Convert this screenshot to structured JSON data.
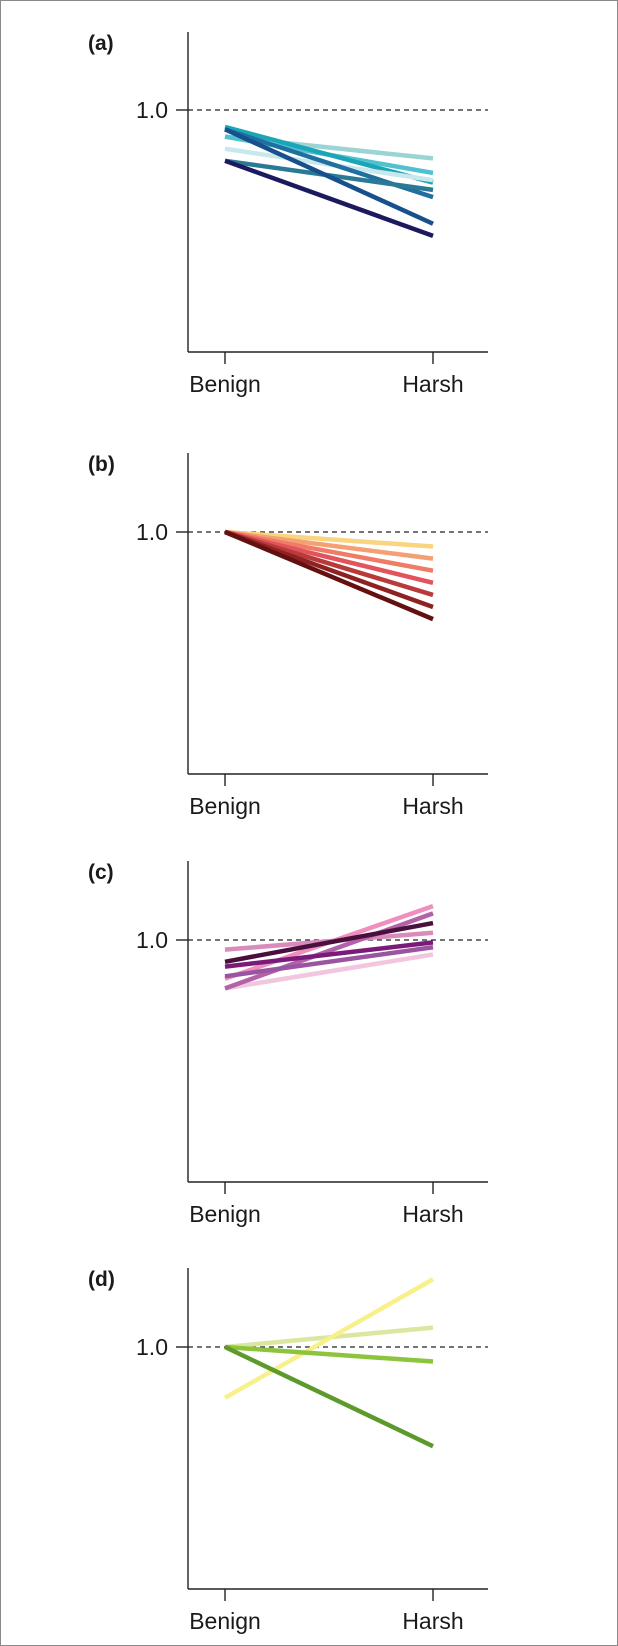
{
  "chart_data": [
    {
      "type": "line",
      "panel_label": "(a)",
      "categories": [
        "Benign",
        "Harsh"
      ],
      "yref_label": "1.0",
      "ylim": [
        0.0,
        1.2
      ],
      "reference_line": 1.0,
      "series": [
        {
          "values": [
            0.89,
            0.8
          ],
          "color": "#9ad4d4"
        },
        {
          "values": [
            0.89,
            0.74
          ],
          "color": "#4fc1cf"
        },
        {
          "values": [
            0.93,
            0.7
          ],
          "color": "#1aa6b7"
        },
        {
          "values": [
            0.84,
            0.71
          ],
          "color": "#c8e8ec"
        },
        {
          "values": [
            0.92,
            0.64
          ],
          "color": "#1f6fa0"
        },
        {
          "values": [
            0.79,
            0.67
          ],
          "color": "#2a7a95"
        },
        {
          "values": [
            0.92,
            0.53
          ],
          "color": "#17508c"
        },
        {
          "values": [
            0.79,
            0.48
          ],
          "color": "#1c1a5e"
        }
      ]
    },
    {
      "type": "line",
      "panel_label": "(b)",
      "categories": [
        "Benign",
        "Harsh"
      ],
      "yref_label": "1.0",
      "ylim": [
        0.0,
        1.2
      ],
      "reference_line": 1.0,
      "series": [
        {
          "values": [
            1.0,
            0.94
          ],
          "color": "#f8d57e"
        },
        {
          "values": [
            1.0,
            0.89
          ],
          "color": "#f4a072"
        },
        {
          "values": [
            1.0,
            0.84
          ],
          "color": "#ee7c66"
        },
        {
          "values": [
            1.0,
            0.79
          ],
          "color": "#e2535c"
        },
        {
          "values": [
            1.0,
            0.74
          ],
          "color": "#b93a3a"
        },
        {
          "values": [
            1.0,
            0.69
          ],
          "color": "#8e2222"
        },
        {
          "values": [
            1.0,
            0.64
          ],
          "color": "#641010"
        }
      ]
    },
    {
      "type": "line",
      "panel_label": "(c)",
      "categories": [
        "Benign",
        "Harsh"
      ],
      "yref_label": "1.0",
      "ylim": [
        0.0,
        1.2
      ],
      "reference_line": 1.0,
      "series": [
        {
          "values": [
            0.96,
            1.03
          ],
          "color": "#d98cbc"
        },
        {
          "values": [
            0.8,
            0.94
          ],
          "color": "#f3c6df"
        },
        {
          "values": [
            0.8,
            1.11
          ],
          "color": "#b361a8"
        },
        {
          "values": [
            0.84,
            1.14
          ],
          "color": "#ee8fbd"
        },
        {
          "values": [
            0.85,
            0.97
          ],
          "color": "#9a55a0"
        },
        {
          "values": [
            0.89,
            0.99
          ],
          "color": "#7a1b7a"
        },
        {
          "values": [
            0.91,
            1.07
          ],
          "color": "#4a0f3d"
        }
      ]
    },
    {
      "type": "line",
      "panel_label": "(d)",
      "categories": [
        "Benign",
        "Harsh"
      ],
      "yref_label": "1.0",
      "ylim": [
        0.0,
        1.2
      ],
      "reference_line": 1.0,
      "series": [
        {
          "values": [
            1.0,
            1.08
          ],
          "color": "#dbe69e"
        },
        {
          "values": [
            0.79,
            1.28
          ],
          "color": "#f8f08a"
        },
        {
          "values": [
            1.0,
            0.94
          ],
          "color": "#8cc43e"
        },
        {
          "values": [
            1.0,
            0.59
          ],
          "color": "#5e9a2b"
        }
      ]
    }
  ]
}
